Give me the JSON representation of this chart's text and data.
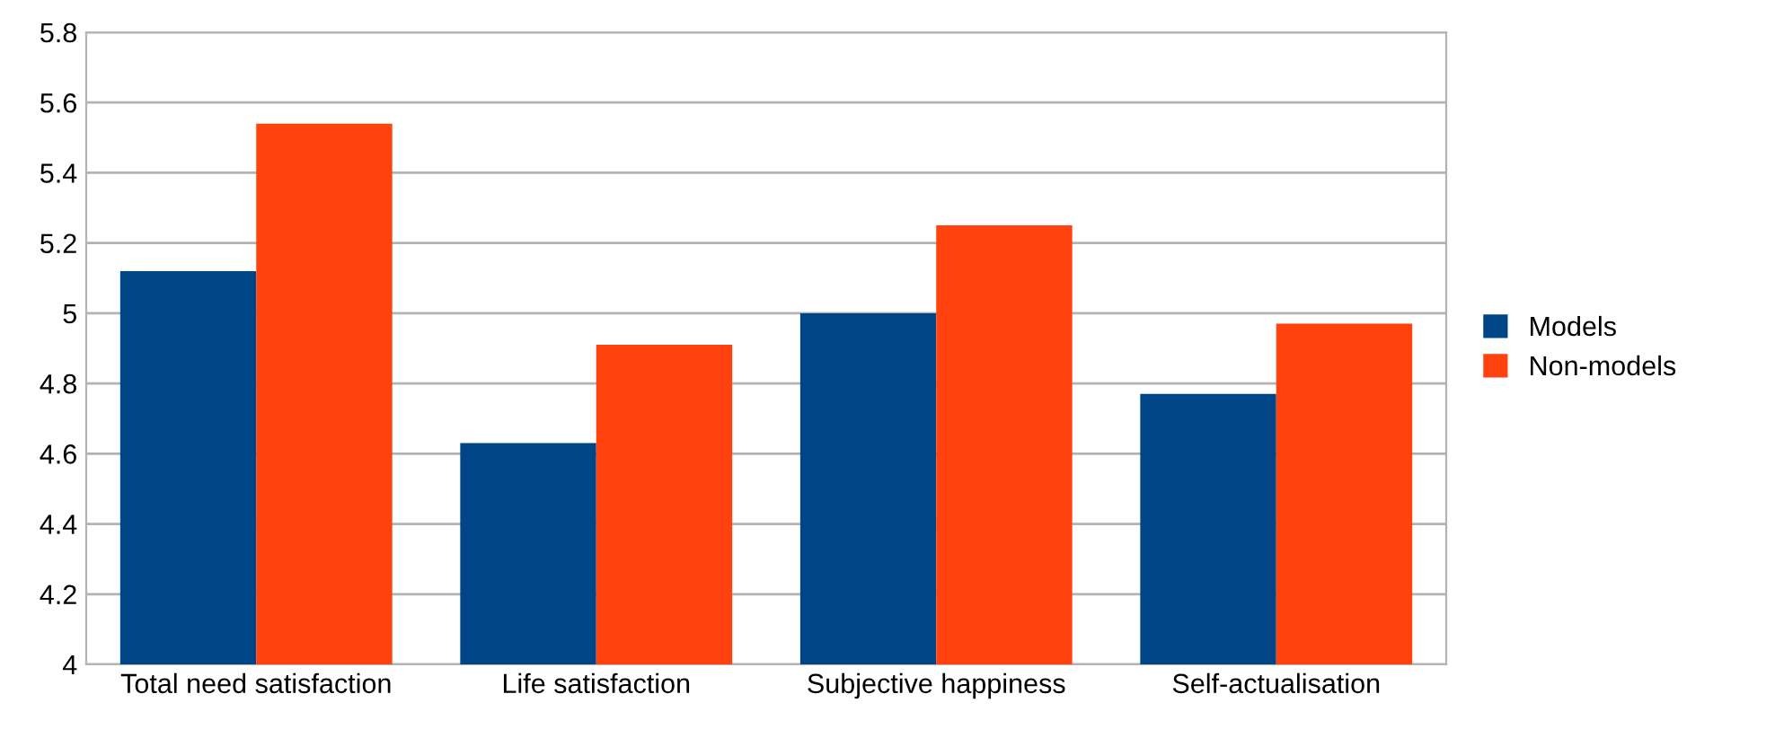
{
  "chart_data": {
    "type": "bar",
    "categories": [
      "Total need satisfaction",
      "Life satisfaction",
      "Subjective happiness",
      "Self-actualisation"
    ],
    "series": [
      {
        "name": "Models",
        "color": "#004586",
        "values": [
          5.12,
          4.63,
          5.0,
          4.77
        ]
      },
      {
        "name": "Non-models",
        "color": "#ff420e",
        "values": [
          5.54,
          4.91,
          5.25,
          4.97
        ]
      }
    ],
    "ylim": [
      4,
      5.8
    ],
    "yticks": [
      4,
      4.2,
      4.4,
      4.6,
      4.8,
      5,
      5.2,
      5.4,
      5.6,
      5.8
    ],
    "grid": "y",
    "legend": "right"
  }
}
